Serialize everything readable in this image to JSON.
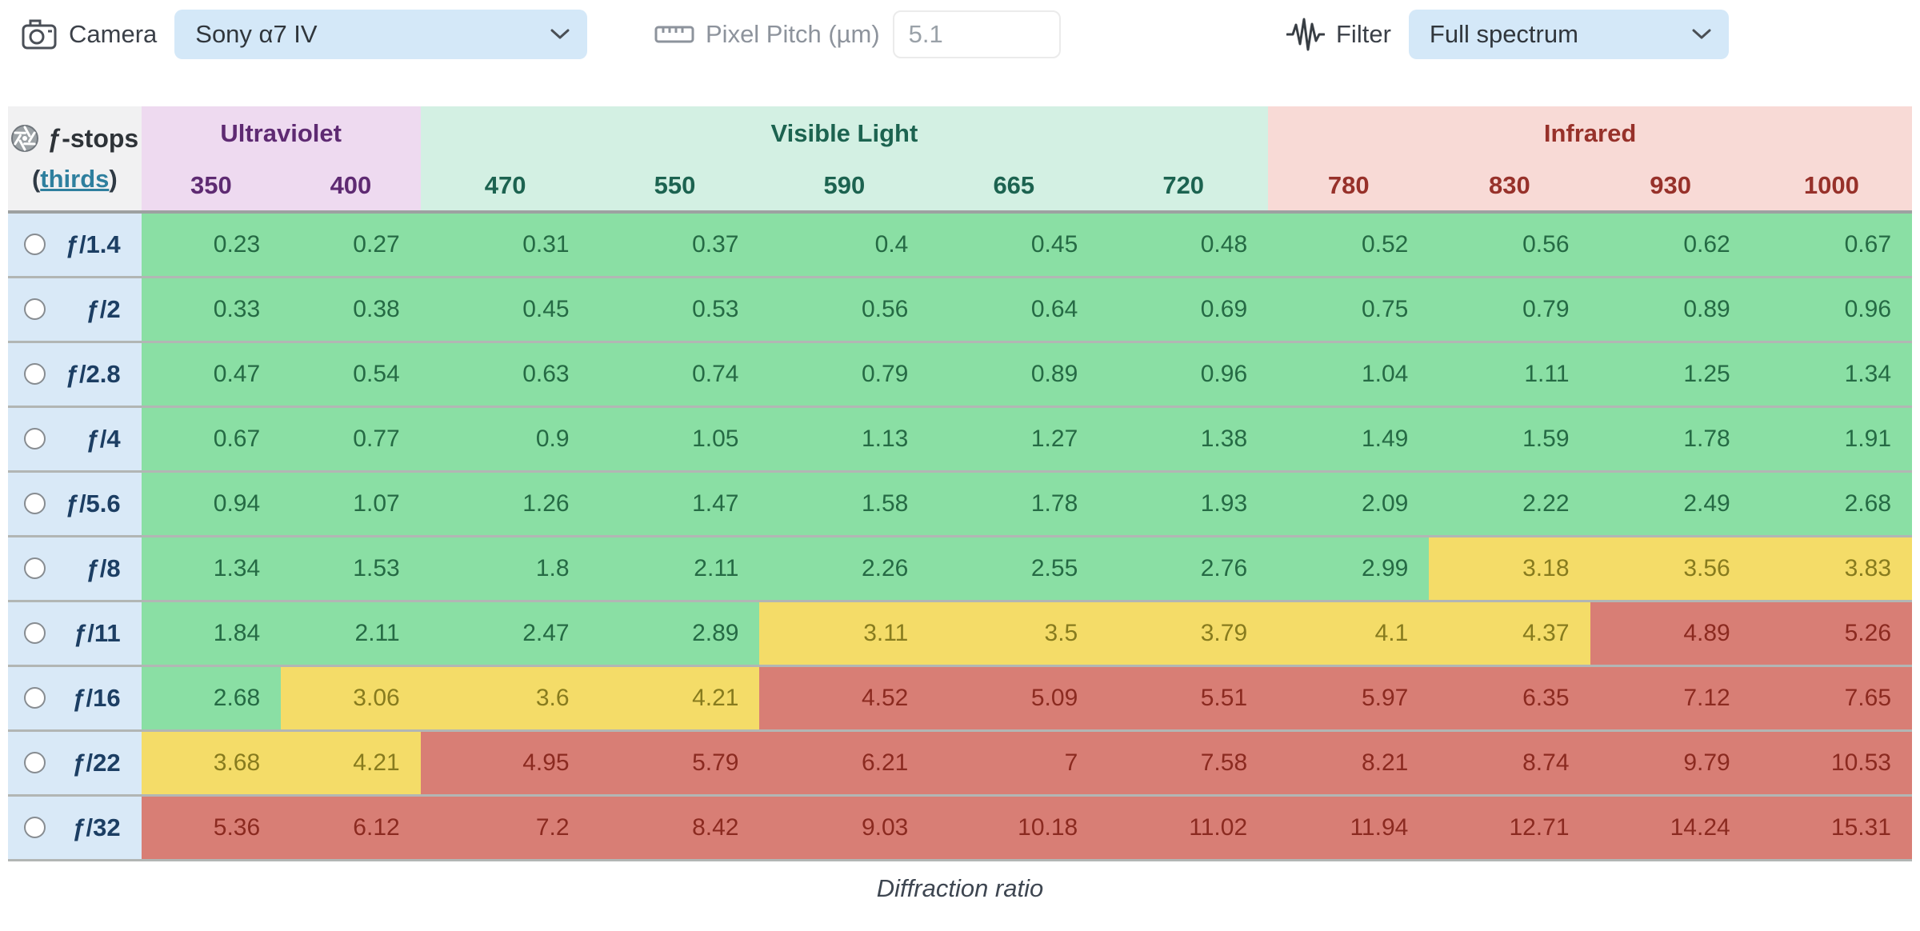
{
  "toolbar": {
    "camera": {
      "label": "Camera",
      "value": "Sony α7 IV",
      "icon": "camera-icon"
    },
    "pixel_pitch": {
      "label": "Pixel Pitch (µm)",
      "value": "5.1",
      "icon": "ruler-icon"
    },
    "filter": {
      "label": "Filter",
      "value": "Full spectrum",
      "icon": "waveform-icon"
    }
  },
  "table": {
    "corner": {
      "icon": "aperture-icon",
      "title": "ƒ-stops",
      "link_prefix": "(",
      "link_text": "thirds",
      "link_suffix": ")"
    },
    "groups": [
      {
        "id": "ultraviolet",
        "label": "Ultraviolet",
        "columns": [
          "350",
          "400"
        ]
      },
      {
        "id": "visible-light",
        "label": "Visible Light",
        "columns": [
          "470",
          "550",
          "590",
          "665",
          "720"
        ]
      },
      {
        "id": "infrared",
        "label": "Infrared",
        "columns": [
          "780",
          "830",
          "930",
          "1000"
        ]
      }
    ],
    "rows": [
      {
        "fstop": "ƒ/1.4",
        "selected": false,
        "values": [
          "0.23",
          "0.27",
          "0.31",
          "0.37",
          "0.4",
          "0.45",
          "0.48",
          "0.52",
          "0.56",
          "0.62",
          "0.67"
        ]
      },
      {
        "fstop": "ƒ/2",
        "selected": false,
        "values": [
          "0.33",
          "0.38",
          "0.45",
          "0.53",
          "0.56",
          "0.64",
          "0.69",
          "0.75",
          "0.79",
          "0.89",
          "0.96"
        ]
      },
      {
        "fstop": "ƒ/2.8",
        "selected": false,
        "values": [
          "0.47",
          "0.54",
          "0.63",
          "0.74",
          "0.79",
          "0.89",
          "0.96",
          "1.04",
          "1.11",
          "1.25",
          "1.34"
        ]
      },
      {
        "fstop": "ƒ/4",
        "selected": false,
        "values": [
          "0.67",
          "0.77",
          "0.9",
          "1.05",
          "1.13",
          "1.27",
          "1.38",
          "1.49",
          "1.59",
          "1.78",
          "1.91"
        ]
      },
      {
        "fstop": "ƒ/5.6",
        "selected": false,
        "values": [
          "0.94",
          "1.07",
          "1.26",
          "1.47",
          "1.58",
          "1.78",
          "1.93",
          "2.09",
          "2.22",
          "2.49",
          "2.68"
        ]
      },
      {
        "fstop": "ƒ/8",
        "selected": false,
        "values": [
          "1.34",
          "1.53",
          "1.8",
          "2.11",
          "2.26",
          "2.55",
          "2.76",
          "2.99",
          "3.18",
          "3.56",
          "3.83"
        ]
      },
      {
        "fstop": "ƒ/11",
        "selected": false,
        "values": [
          "1.84",
          "2.11",
          "2.47",
          "2.89",
          "3.11",
          "3.5",
          "3.79",
          "4.1",
          "4.37",
          "4.89",
          "5.26"
        ]
      },
      {
        "fstop": "ƒ/16",
        "selected": false,
        "values": [
          "2.68",
          "3.06",
          "3.6",
          "4.21",
          "4.52",
          "5.09",
          "5.51",
          "5.97",
          "6.35",
          "7.12",
          "7.65"
        ]
      },
      {
        "fstop": "ƒ/22",
        "selected": false,
        "values": [
          "3.68",
          "4.21",
          "4.95",
          "5.79",
          "6.21",
          "7",
          "7.58",
          "8.21",
          "8.74",
          "9.79",
          "10.53"
        ]
      },
      {
        "fstop": "ƒ/32",
        "selected": false,
        "values": [
          "5.36",
          "6.12",
          "7.2",
          "8.42",
          "9.03",
          "10.18",
          "11.02",
          "11.94",
          "12.71",
          "14.24",
          "15.31"
        ]
      }
    ],
    "thresholds": {
      "green_below": 3,
      "yellow_below": 4.5
    },
    "caption": "Diffraction ratio"
  },
  "colors": {
    "green_bg": "#8adfa4",
    "green_text": "#256a44",
    "yellow_bg": "#f4dc68",
    "yellow_text": "#877b1e",
    "red_bg": "#d87e75",
    "red_text": "#8b2a20",
    "uv_bg": "#eedaf0",
    "uv_text": "#5e2a72",
    "visible_bg": "#d3f0e3",
    "visible_text": "#1c6350",
    "ir_bg": "#f8dad6",
    "ir_text": "#97312a",
    "accent_dropdown_bg": "#d4e8f8",
    "row_label_bg": "#d9e9f7",
    "row_label_text": "#1c3e63",
    "link": "#2e7f9e"
  }
}
